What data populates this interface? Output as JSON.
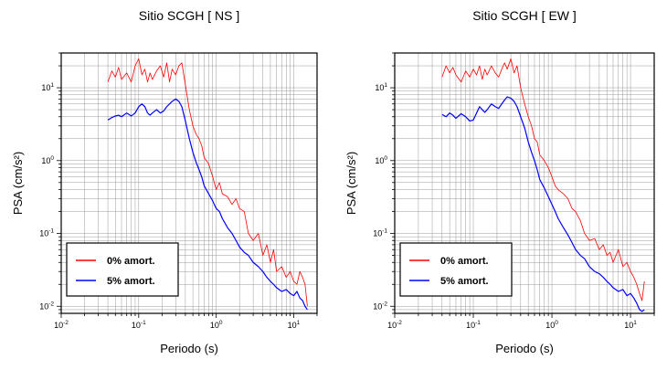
{
  "chart_data": [
    {
      "type": "line",
      "title": "Sitio SCGH [ NS ]",
      "xlabel": "Periodo (s)",
      "ylabel": "PSA (cm/s²)",
      "x_scale": "log",
      "y_scale": "log",
      "xlim": [
        0.01,
        20
      ],
      "ylim": [
        0.008,
        30
      ],
      "x_ticks": [
        {
          "value": 0.01,
          "base": "10",
          "exp": "-2"
        },
        {
          "value": 0.1,
          "base": "10",
          "exp": "-1"
        },
        {
          "value": 1,
          "base": "10",
          "exp": "0"
        },
        {
          "value": 10,
          "base": "10",
          "exp": "1"
        }
      ],
      "y_ticks": [
        {
          "value": 0.01,
          "base": "10",
          "exp": "-2"
        },
        {
          "value": 0.1,
          "base": "10",
          "exp": "-1"
        },
        {
          "value": 1,
          "base": "10",
          "exp": "0"
        },
        {
          "value": 10,
          "base": "10",
          "exp": "1"
        }
      ],
      "grid": true,
      "legend_position": "bottom-left",
      "series": [
        {
          "name": "0% amort.",
          "color": "#ff0000",
          "x": [
            0.04,
            0.045,
            0.05,
            0.055,
            0.06,
            0.07,
            0.08,
            0.09,
            0.1,
            0.11,
            0.12,
            0.13,
            0.14,
            0.15,
            0.17,
            0.19,
            0.21,
            0.23,
            0.25,
            0.27,
            0.3,
            0.33,
            0.36,
            0.4,
            0.45,
            0.5,
            0.55,
            0.6,
            0.65,
            0.7,
            0.8,
            0.9,
            1.0,
            1.1,
            1.2,
            1.4,
            1.6,
            1.8,
            2.0,
            2.3,
            2.6,
            3.0,
            3.5,
            4.0,
            4.5,
            5.0,
            5.5,
            6.0,
            7.0,
            8.0,
            9.0,
            10.0,
            11.0,
            12.0,
            13.0,
            14.0,
            15.0
          ],
          "y": [
            12,
            17,
            14,
            19,
            13,
            16,
            12,
            20,
            25,
            15,
            18,
            12,
            16,
            13,
            17,
            20,
            14,
            22,
            12,
            18,
            15,
            20,
            22,
            11,
            5.0,
            3.0,
            2.3,
            2.0,
            1.6,
            1.1,
            0.9,
            0.6,
            0.4,
            0.5,
            0.35,
            0.32,
            0.25,
            0.3,
            0.22,
            0.2,
            0.1,
            0.08,
            0.1,
            0.05,
            0.07,
            0.04,
            0.06,
            0.03,
            0.035,
            0.025,
            0.03,
            0.022,
            0.02,
            0.03,
            0.025,
            0.02,
            0.01
          ]
        },
        {
          "name": "5% amort.",
          "color": "#0000ff",
          "x": [
            0.04,
            0.045,
            0.05,
            0.055,
            0.06,
            0.07,
            0.08,
            0.09,
            0.1,
            0.11,
            0.12,
            0.13,
            0.14,
            0.15,
            0.17,
            0.19,
            0.21,
            0.23,
            0.25,
            0.27,
            0.3,
            0.33,
            0.36,
            0.4,
            0.45,
            0.5,
            0.55,
            0.6,
            0.65,
            0.7,
            0.8,
            0.9,
            1.0,
            1.1,
            1.2,
            1.4,
            1.6,
            1.8,
            2.0,
            2.3,
            2.6,
            3.0,
            3.5,
            4.0,
            4.5,
            5.0,
            5.5,
            6.0,
            7.0,
            8.0,
            9.0,
            10.0,
            11.0,
            12.0,
            13.0,
            14.0,
            15.0
          ],
          "y": [
            3.6,
            3.9,
            4.1,
            4.2,
            4.0,
            4.5,
            4.1,
            4.5,
            5.5,
            6.0,
            5.5,
            4.5,
            4.2,
            4.5,
            5.0,
            4.5,
            4.8,
            5.5,
            6.0,
            6.5,
            7.0,
            6.5,
            5.5,
            3.5,
            2.0,
            1.3,
            0.95,
            0.75,
            0.6,
            0.45,
            0.35,
            0.28,
            0.22,
            0.2,
            0.16,
            0.12,
            0.1,
            0.08,
            0.065,
            0.055,
            0.05,
            0.04,
            0.035,
            0.03,
            0.025,
            0.022,
            0.02,
            0.018,
            0.016,
            0.017,
            0.015,
            0.014,
            0.016,
            0.013,
            0.012,
            0.01,
            0.009
          ]
        }
      ]
    },
    {
      "type": "line",
      "title": "Sitio SCGH [ EW ]",
      "xlabel": "Periodo (s)",
      "ylabel": "PSA (cm/s²)",
      "x_scale": "log",
      "y_scale": "log",
      "xlim": [
        0.01,
        20
      ],
      "ylim": [
        0.008,
        30
      ],
      "x_ticks": [
        {
          "value": 0.01,
          "base": "10",
          "exp": "-2"
        },
        {
          "value": 0.1,
          "base": "10",
          "exp": "-1"
        },
        {
          "value": 1,
          "base": "10",
          "exp": "0"
        },
        {
          "value": 10,
          "base": "10",
          "exp": "1"
        }
      ],
      "y_ticks": [
        {
          "value": 0.01,
          "base": "10",
          "exp": "-2"
        },
        {
          "value": 0.1,
          "base": "10",
          "exp": "-1"
        },
        {
          "value": 1,
          "base": "10",
          "exp": "0"
        },
        {
          "value": 10,
          "base": "10",
          "exp": "1"
        }
      ],
      "grid": true,
      "legend_position": "bottom-left",
      "series": [
        {
          "name": "0% amort.",
          "color": "#ff0000",
          "x": [
            0.04,
            0.045,
            0.05,
            0.055,
            0.06,
            0.07,
            0.08,
            0.09,
            0.1,
            0.11,
            0.12,
            0.13,
            0.14,
            0.15,
            0.17,
            0.19,
            0.21,
            0.23,
            0.25,
            0.27,
            0.3,
            0.33,
            0.36,
            0.4,
            0.45,
            0.5,
            0.55,
            0.6,
            0.65,
            0.7,
            0.8,
            0.9,
            1.0,
            1.1,
            1.2,
            1.4,
            1.6,
            1.8,
            2.0,
            2.3,
            2.6,
            3.0,
            3.5,
            4.0,
            4.5,
            5.0,
            5.5,
            6.0,
            7.0,
            8.0,
            9.0,
            10.0,
            11.0,
            12.0,
            13.0,
            14.0,
            15.0
          ],
          "y": [
            14,
            20,
            16,
            19,
            15,
            12,
            17,
            14,
            18,
            15,
            20,
            13,
            18,
            15,
            20,
            16,
            14,
            18,
            22,
            18,
            25,
            16,
            20,
            10,
            6.0,
            4.0,
            3.0,
            2.0,
            1.8,
            1.2,
            1.0,
            0.8,
            0.6,
            0.45,
            0.4,
            0.35,
            0.3,
            0.22,
            0.2,
            0.15,
            0.1,
            0.08,
            0.085,
            0.06,
            0.07,
            0.05,
            0.055,
            0.04,
            0.06,
            0.035,
            0.04,
            0.03,
            0.025,
            0.02,
            0.015,
            0.012,
            0.022
          ]
        },
        {
          "name": "5% amort.",
          "color": "#0000ff",
          "x": [
            0.04,
            0.045,
            0.05,
            0.055,
            0.06,
            0.07,
            0.08,
            0.09,
            0.1,
            0.11,
            0.12,
            0.13,
            0.14,
            0.15,
            0.17,
            0.19,
            0.21,
            0.23,
            0.25,
            0.27,
            0.3,
            0.33,
            0.36,
            0.4,
            0.45,
            0.5,
            0.55,
            0.6,
            0.65,
            0.7,
            0.8,
            0.9,
            1.0,
            1.1,
            1.2,
            1.4,
            1.6,
            1.8,
            2.0,
            2.3,
            2.6,
            3.0,
            3.5,
            4.0,
            4.5,
            5.0,
            5.5,
            6.0,
            7.0,
            8.0,
            9.0,
            10.0,
            11.0,
            12.0,
            13.0,
            14.0,
            15.0
          ],
          "y": [
            4.3,
            4.0,
            4.5,
            4.2,
            3.8,
            4.4,
            4.0,
            3.5,
            3.6,
            4.5,
            5.5,
            5.0,
            4.6,
            5.0,
            6.0,
            5.5,
            5.2,
            6.0,
            6.8,
            7.5,
            7.2,
            6.5,
            5.5,
            4.0,
            2.8,
            1.8,
            1.3,
            1.0,
            0.75,
            0.55,
            0.42,
            0.32,
            0.25,
            0.2,
            0.16,
            0.12,
            0.095,
            0.075,
            0.06,
            0.05,
            0.045,
            0.035,
            0.03,
            0.028,
            0.025,
            0.022,
            0.02,
            0.018,
            0.016,
            0.017,
            0.014,
            0.015,
            0.013,
            0.011,
            0.009,
            0.0085,
            0.009
          ]
        }
      ]
    }
  ]
}
